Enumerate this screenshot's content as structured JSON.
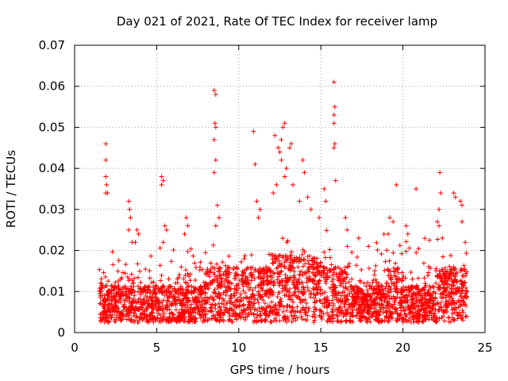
{
  "chart_data": {
    "type": "scatter",
    "title": "Day 021 of 2021, Rate Of TEC Index for receiver lamp",
    "xlabel": "GPS time / hours",
    "ylabel": "ROTI / TECUs",
    "xlim": [
      0,
      25
    ],
    "ylim": [
      0,
      0.07
    ],
    "x_ticks": [
      0,
      5,
      10,
      15,
      20,
      25
    ],
    "x_tick_labels": [
      "0",
      "5",
      "10",
      "15",
      "20",
      "25"
    ],
    "y_ticks": [
      0,
      0.01,
      0.02,
      0.03,
      0.04,
      0.05,
      0.06,
      0.07
    ],
    "y_tick_labels": [
      "0",
      "0.01",
      "0.02",
      "0.03",
      "0.04",
      "0.05",
      "0.06",
      "0.07"
    ],
    "grid": true,
    "marker": "+",
    "color": "#ff0000",
    "series": [
      {
        "name": "ROTI",
        "x_range": [
          1.5,
          23.9
        ],
        "points": [
          [
            1.9,
            0.046
          ],
          [
            1.9,
            0.042
          ],
          [
            1.9,
            0.038
          ],
          [
            1.95,
            0.036
          ],
          [
            1.9,
            0.034
          ],
          [
            2.0,
            0.034
          ],
          [
            3.3,
            0.032
          ],
          [
            3.35,
            0.03
          ],
          [
            3.4,
            0.028
          ],
          [
            3.3,
            0.025
          ],
          [
            3.5,
            0.022
          ],
          [
            3.8,
            0.025
          ],
          [
            3.9,
            0.024
          ],
          [
            3.7,
            0.022
          ],
          [
            5.3,
            0.038
          ],
          [
            5.4,
            0.037
          ],
          [
            5.3,
            0.036
          ],
          [
            5.5,
            0.026
          ],
          [
            5.6,
            0.025
          ],
          [
            5.4,
            0.022
          ],
          [
            6.8,
            0.028
          ],
          [
            6.9,
            0.026
          ],
          [
            6.7,
            0.024
          ],
          [
            8.5,
            0.059
          ],
          [
            8.6,
            0.058
          ],
          [
            8.55,
            0.051
          ],
          [
            8.6,
            0.05
          ],
          [
            8.5,
            0.047
          ],
          [
            8.6,
            0.042
          ],
          [
            8.5,
            0.039
          ],
          [
            8.7,
            0.031
          ],
          [
            8.8,
            0.028
          ],
          [
            8.6,
            0.026
          ],
          [
            10.9,
            0.049
          ],
          [
            11.0,
            0.041
          ],
          [
            11.1,
            0.032
          ],
          [
            11.3,
            0.03
          ],
          [
            11.2,
            0.028
          ],
          [
            12.2,
            0.048
          ],
          [
            12.4,
            0.045
          ],
          [
            12.5,
            0.044
          ],
          [
            12.6,
            0.042
          ],
          [
            12.7,
            0.05
          ],
          [
            12.8,
            0.051
          ],
          [
            12.6,
            0.047
          ],
          [
            13.1,
            0.045
          ],
          [
            13.2,
            0.046
          ],
          [
            12.9,
            0.04
          ],
          [
            12.8,
            0.038
          ],
          [
            13.3,
            0.036
          ],
          [
            12.3,
            0.036
          ],
          [
            12.1,
            0.034
          ],
          [
            13.9,
            0.042
          ],
          [
            14.0,
            0.039
          ],
          [
            14.2,
            0.033
          ],
          [
            13.7,
            0.032
          ],
          [
            14.4,
            0.03
          ],
          [
            15.2,
            0.035
          ],
          [
            15.3,
            0.032
          ],
          [
            14.9,
            0.028
          ],
          [
            15.8,
            0.061
          ],
          [
            15.85,
            0.055
          ],
          [
            15.8,
            0.053
          ],
          [
            15.8,
            0.051
          ],
          [
            15.85,
            0.046
          ],
          [
            15.8,
            0.045
          ],
          [
            15.9,
            0.037
          ],
          [
            16.5,
            0.028
          ],
          [
            16.6,
            0.025
          ],
          [
            17.3,
            0.023
          ],
          [
            17.9,
            0.021
          ],
          [
            19.2,
            0.028
          ],
          [
            19.4,
            0.027
          ],
          [
            19.6,
            0.036
          ],
          [
            19.1,
            0.024
          ],
          [
            20.2,
            0.026
          ],
          [
            20.3,
            0.024
          ],
          [
            20.8,
            0.035
          ],
          [
            22.1,
            0.027
          ],
          [
            22.2,
            0.026
          ],
          [
            22.25,
            0.039
          ],
          [
            22.3,
            0.034
          ],
          [
            22.2,
            0.03
          ],
          [
            22.4,
            0.023
          ],
          [
            23.1,
            0.034
          ],
          [
            23.2,
            0.033
          ],
          [
            23.5,
            0.032
          ],
          [
            23.6,
            0.031
          ],
          [
            23.6,
            0.027
          ],
          [
            23.8,
            0.022
          ]
        ]
      }
    ]
  }
}
